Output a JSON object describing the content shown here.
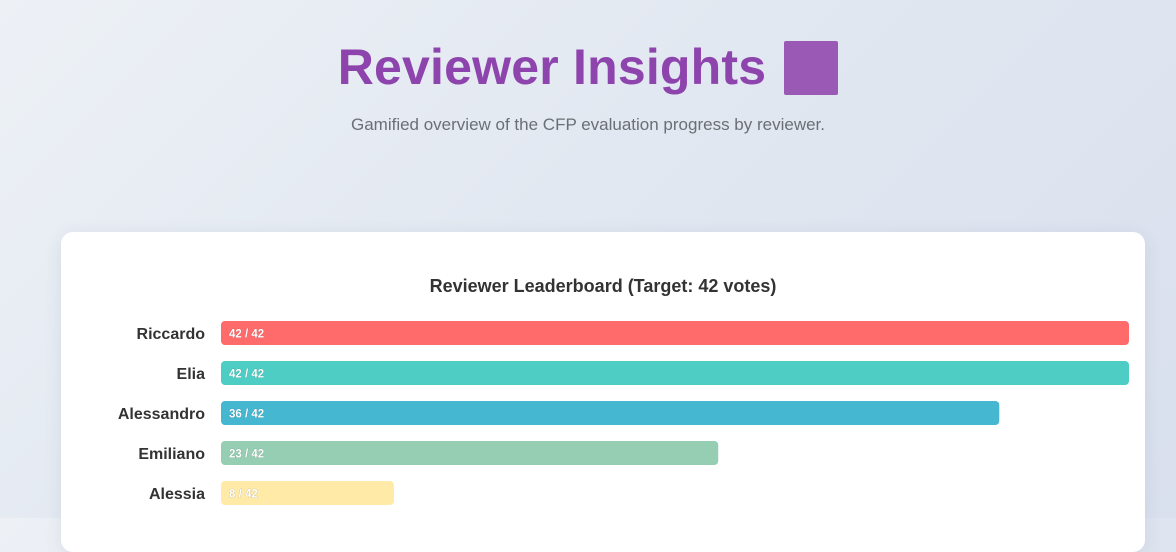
{
  "header": {
    "title": "Reviewer Insights",
    "title_icon": "purple-square",
    "title_color": "#8e44ad",
    "subtitle": "Gamified overview of the CFP evaluation progress by reviewer."
  },
  "chart_data": {
    "type": "bar",
    "orientation": "horizontal",
    "title": "Reviewer Leaderboard (Target: 42 votes)",
    "target": 42,
    "categories": [
      "Riccardo",
      "Elia",
      "Alessandro",
      "Emiliano",
      "Alessia"
    ],
    "values": [
      42,
      42,
      36,
      23,
      8
    ],
    "value_labels": [
      "42 / 42",
      "42 / 42",
      "36 / 42",
      "23 / 42",
      "8 / 42"
    ],
    "colors": [
      "#ff6b6b",
      "#4ecdc4",
      "#45b7d1",
      "#96ceb4",
      "#ffeaa7"
    ],
    "xlim": [
      0,
      42
    ],
    "grid": false,
    "legend": "none"
  }
}
